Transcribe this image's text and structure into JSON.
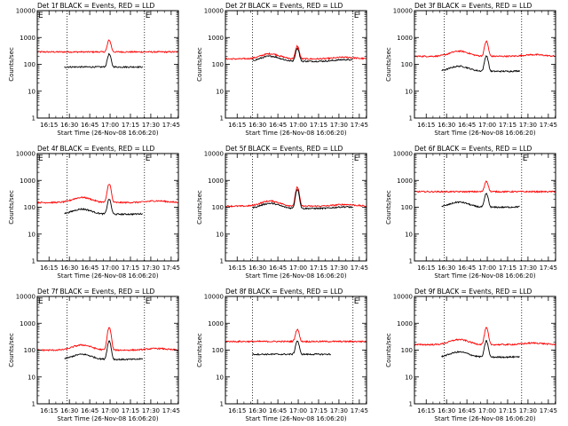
{
  "figure": {
    "panel_title_suffix": "BLACK = Events, RED = LLD",
    "xlabel": "Start Time (26-Nov-08 16:06:20)",
    "ylabel": "Counts/sec",
    "x_ticks": [
      "16:15",
      "16:30",
      "16:45",
      "17:00",
      "17:15",
      "17:30",
      "17:45"
    ],
    "y_ticks": [
      "1",
      "10",
      "100",
      "1000",
      "10000"
    ],
    "colors": {
      "events": "#000000",
      "lld": "#ff0000",
      "axes": "#000000"
    }
  },
  "chart_data": [
    {
      "type": "line",
      "title": "Det 1f BLACK = Events, RED = LLD",
      "det_label": "Det 1f",
      "corner_left": "E",
      "corner_right": "E",
      "xlabel": "Start Time (26-Nov-08 16:06:20)",
      "ylabel": "Counts/sec",
      "x_unit": "minutes after 16:06:20",
      "xlim": [
        0,
        104
      ],
      "ylim": [
        1,
        10000
      ],
      "yscale": "log",
      "markers": {
        "start": 22.0,
        "end": 79.0
      },
      "events_range": [
        20,
        78
      ],
      "series": [
        {
          "name": "LLD",
          "color": "#ff0000",
          "base": 290,
          "shape": "flat",
          "peak": 800,
          "peak_at": 53
        },
        {
          "name": "Events",
          "color": "#000000",
          "base": 80,
          "shape": "flat",
          "peak": 240,
          "peak_at": 53
        }
      ]
    },
    {
      "type": "line",
      "title": "Det 2f BLACK = Events, RED = LLD",
      "det_label": "Det 2f",
      "corner_left": "",
      "corner_right": "E",
      "xlabel": "Start Time (26-Nov-08 16:06:20)",
      "ylabel": "Counts/sec",
      "x_unit": "minutes after 16:06:20",
      "xlim": [
        0,
        104
      ],
      "ylim": [
        1,
        10000
      ],
      "yscale": "log",
      "markers": {
        "start": 20.0,
        "end": 94.0
      },
      "events_range": [
        20,
        94
      ],
      "series": [
        {
          "name": "LLD",
          "color": "#ff0000",
          "base": 160,
          "shape": "hump",
          "peak": 480,
          "peak_at": 53
        },
        {
          "name": "Events",
          "color": "#000000",
          "base": 130,
          "shape": "hump",
          "peak": 400,
          "peak_at": 53
        }
      ]
    },
    {
      "type": "line",
      "title": "Det 3f BLACK = Events, RED = LLD",
      "det_label": "Det 3f",
      "corner_left": "",
      "corner_right": "",
      "xlabel": "Start Time (26-Nov-08 16:06:20)",
      "ylabel": "Counts/sec",
      "x_unit": "minutes after 16:06:20",
      "xlim": [
        0,
        104
      ],
      "ylim": [
        1,
        10000
      ],
      "yscale": "log",
      "markers": {
        "start": 22.0,
        "end": 79.0
      },
      "events_range": [
        20,
        78
      ],
      "series": [
        {
          "name": "LLD",
          "color": "#ff0000",
          "base": 200,
          "shape": "hump",
          "peak": 720,
          "peak_at": 53
        },
        {
          "name": "Events",
          "color": "#000000",
          "base": 55,
          "shape": "hump",
          "peak": 210,
          "peak_at": 53
        }
      ]
    },
    {
      "type": "line",
      "title": "Det 4f BLACK = Events, RED = LLD",
      "det_label": "Det 4f",
      "corner_left": "E",
      "corner_right": "E",
      "xlabel": "Start Time (26-Nov-08 16:06:20)",
      "ylabel": "Counts/sec",
      "x_unit": "minutes after 16:06:20",
      "xlim": [
        0,
        104
      ],
      "ylim": [
        1,
        10000
      ],
      "yscale": "log",
      "markers": {
        "start": 22.0,
        "end": 79.0
      },
      "events_range": [
        20,
        78
      ],
      "series": [
        {
          "name": "LLD",
          "color": "#ff0000",
          "base": 150,
          "shape": "hump",
          "peak": 750,
          "peak_at": 53
        },
        {
          "name": "Events",
          "color": "#000000",
          "base": 55,
          "shape": "hump",
          "peak": 200,
          "peak_at": 53
        }
      ]
    },
    {
      "type": "line",
      "title": "Det 5f BLACK = Events, RED = LLD",
      "det_label": "Det 5f",
      "corner_left": "",
      "corner_right": "E",
      "xlabel": "Start Time (26-Nov-08 16:06:20)",
      "ylabel": "Counts/sec",
      "x_unit": "minutes after 16:06:20",
      "xlim": [
        0,
        104
      ],
      "ylim": [
        1,
        10000
      ],
      "yscale": "log",
      "markers": {
        "start": 20.0,
        "end": 94.0
      },
      "events_range": [
        20,
        94
      ],
      "series": [
        {
          "name": "LLD",
          "color": "#ff0000",
          "base": 110,
          "shape": "hump",
          "peak": 560,
          "peak_at": 53
        },
        {
          "name": "Events",
          "color": "#000000",
          "base": 90,
          "shape": "hump",
          "peak": 470,
          "peak_at": 53
        }
      ]
    },
    {
      "type": "line",
      "title": "Det 6f BLACK = Events, RED = LLD",
      "det_label": "Det 6f",
      "corner_left": "",
      "corner_right": "E",
      "xlabel": "Start Time (26-Nov-08 16:06:20)",
      "ylabel": "Counts/sec",
      "x_unit": "minutes after 16:06:20",
      "xlim": [
        0,
        104
      ],
      "ylim": [
        1,
        10000
      ],
      "yscale": "log",
      "markers": {
        "start": 22.0,
        "end": 79.0
      },
      "events_range": [
        20,
        78
      ],
      "series": [
        {
          "name": "LLD",
          "color": "#ff0000",
          "base": 380,
          "shape": "flat",
          "peak": 950,
          "peak_at": 53
        },
        {
          "name": "Events",
          "color": "#000000",
          "base": 100,
          "shape": "hump",
          "peak": 320,
          "peak_at": 53
        }
      ]
    },
    {
      "type": "line",
      "title": "Det 7f BLACK = Events, RED = LLD",
      "det_label": "Det 7f",
      "corner_left": "E",
      "corner_right": "E",
      "xlabel": "Start Time (26-Nov-08 16:06:20)",
      "ylabel": "Counts/sec",
      "x_unit": "minutes after 16:06:20",
      "xlim": [
        0,
        104
      ],
      "ylim": [
        1,
        10000
      ],
      "yscale": "log",
      "markers": {
        "start": 22.0,
        "end": 79.0
      },
      "events_range": [
        20,
        78
      ],
      "series": [
        {
          "name": "LLD",
          "color": "#ff0000",
          "base": 100,
          "shape": "hump",
          "peak": 700,
          "peak_at": 53
        },
        {
          "name": "Events",
          "color": "#000000",
          "base": 45,
          "shape": "hump",
          "peak": 220,
          "peak_at": 53
        }
      ]
    },
    {
      "type": "line",
      "title": "Det 8f BLACK = Events, RED = LLD",
      "det_label": "Det 8f",
      "corner_left": "",
      "corner_right": "E",
      "xlabel": "Start Time (26-Nov-08 16:06:20)",
      "ylabel": "Counts/sec",
      "x_unit": "minutes after 16:06:20",
      "xlim": [
        0,
        104
      ],
      "ylim": [
        1,
        10000
      ],
      "yscale": "log",
      "markers": {
        "start": 20.0,
        "end": 94.0
      },
      "events_range": [
        20,
        78
      ],
      "series": [
        {
          "name": "LLD",
          "color": "#ff0000",
          "base": 210,
          "shape": "flat",
          "peak": 600,
          "peak_at": 53
        },
        {
          "name": "Events",
          "color": "#000000",
          "base": 70,
          "shape": "flat",
          "peak": 220,
          "peak_at": 53
        }
      ]
    },
    {
      "type": "line",
      "title": "Det 9f BLACK = Events, RED = LLD",
      "det_label": "Det 9f",
      "corner_left": "",
      "corner_right": "",
      "xlabel": "Start Time (26-Nov-08 16:06:20)",
      "ylabel": "Counts/sec",
      "x_unit": "minutes after 16:06:20",
      "xlim": [
        0,
        104
      ],
      "ylim": [
        1,
        10000
      ],
      "yscale": "log",
      "markers": {
        "start": 22.0,
        "end": 79.0
      },
      "events_range": [
        20,
        78
      ],
      "series": [
        {
          "name": "LLD",
          "color": "#ff0000",
          "base": 160,
          "shape": "hump",
          "peak": 680,
          "peak_at": 53
        },
        {
          "name": "Events",
          "color": "#000000",
          "base": 55,
          "shape": "hump",
          "peak": 220,
          "peak_at": 53
        }
      ]
    }
  ]
}
